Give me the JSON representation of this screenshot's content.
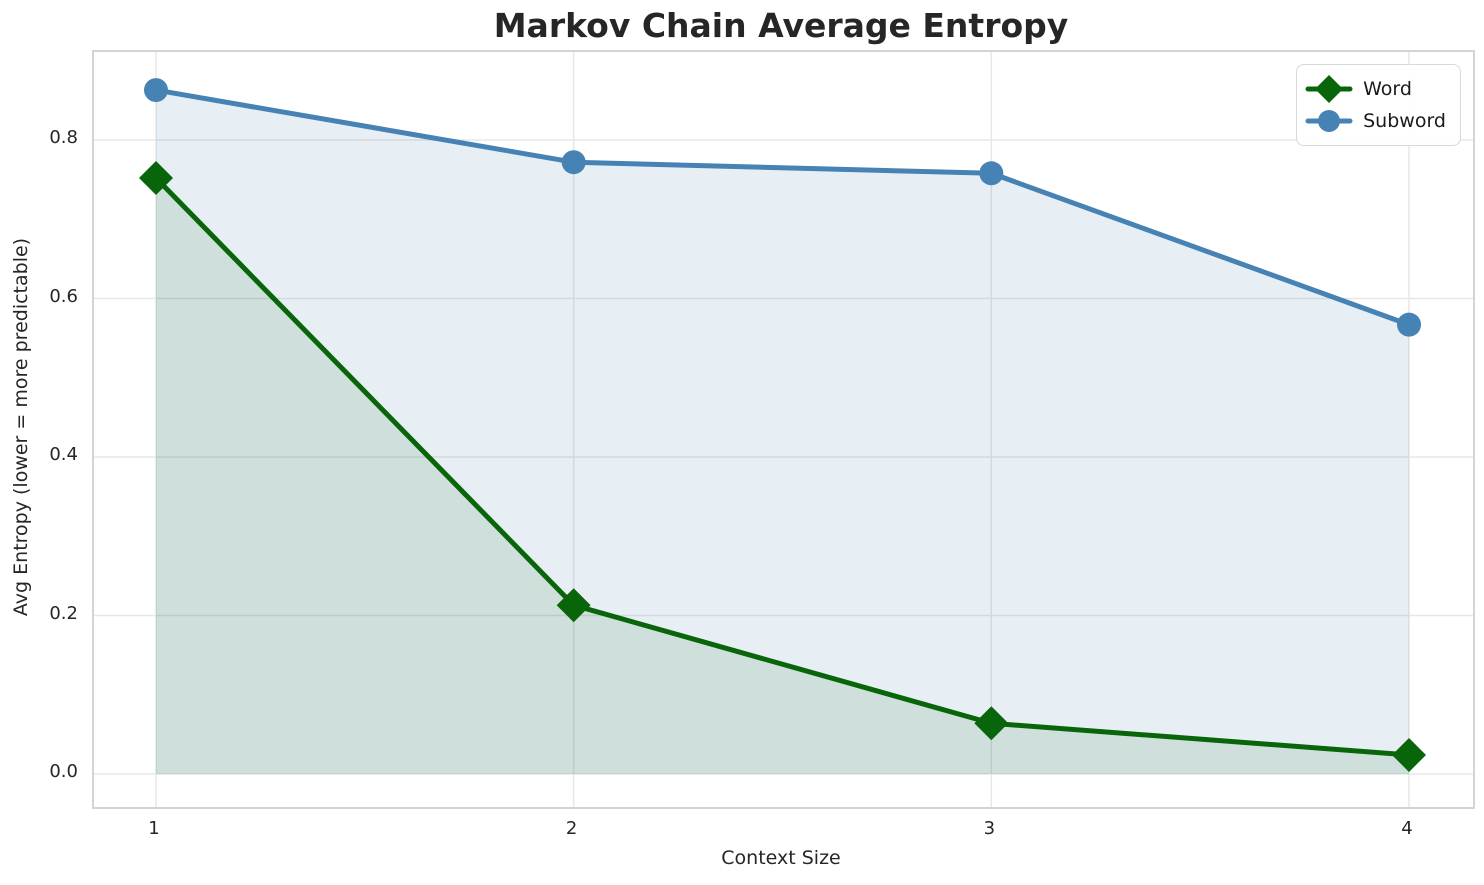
{
  "title": "Markov Chain Average Entropy",
  "axes": {
    "x_label": "Context Size",
    "y_label": "Avg Entropy (lower = more predictable)",
    "x_tick_labels": [
      "1",
      "2",
      "3",
      "4"
    ],
    "y_tick_labels": [
      "0.0",
      "0.2",
      "0.4",
      "0.6",
      "0.8"
    ]
  },
  "legend": {
    "items": [
      "Word",
      "Subword"
    ]
  },
  "chart_data": {
    "type": "line",
    "title": "Markov Chain Average Entropy",
    "xlabel": "Context Size",
    "ylabel": "Avg Entropy (lower = more predictable)",
    "x": [
      1,
      2,
      3,
      4
    ],
    "x_ticks": [
      1,
      2,
      3,
      4
    ],
    "y_ticks": [
      0.0,
      0.2,
      0.4,
      0.6,
      0.8
    ],
    "xlim": [
      0.85,
      4.15
    ],
    "ylim": [
      -0.042,
      0.91
    ],
    "grid": true,
    "legend_position": "upper right",
    "fill_to_zero": true,
    "series": [
      {
        "name": "Word",
        "marker": "diamond",
        "color": "#096509",
        "fill_color": "rgba(0,100,0,0.10)",
        "values": [
          0.752,
          0.213,
          0.064,
          0.024
        ]
      },
      {
        "name": "Subword",
        "marker": "circle",
        "color": "#4682b4",
        "fill_color": "rgba(70,130,180,0.13)",
        "values": [
          0.863,
          0.772,
          0.758,
          0.567
        ]
      }
    ]
  }
}
